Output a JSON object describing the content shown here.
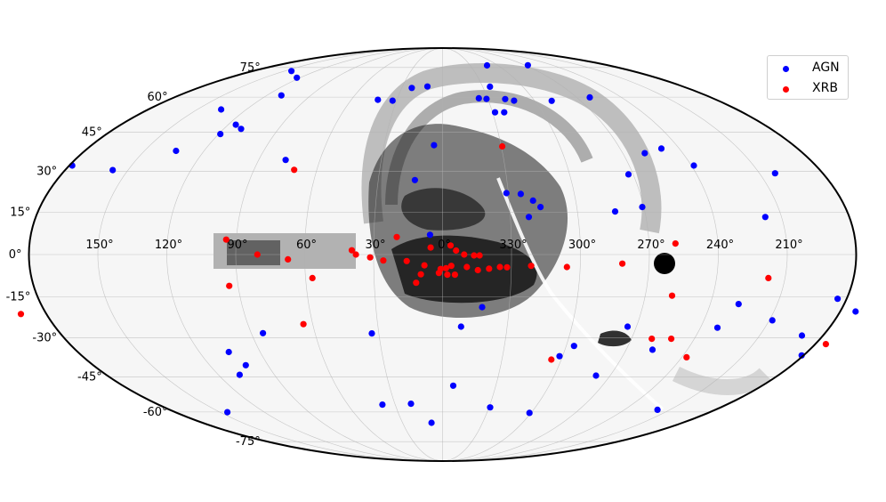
{
  "chart_data": {
    "type": "scatter",
    "projection": "mollweide",
    "grid": true,
    "legend_position": "top-right",
    "xlabel": "",
    "ylabel": "",
    "x_ticks": [
      "150°",
      "120°",
      "90°",
      "60°",
      "30°",
      "0°",
      "330°",
      "300°",
      "270°",
      "240°",
      "210°"
    ],
    "y_ticks": [
      "75°",
      "60°",
      "45°",
      "30°",
      "15°",
      "0°",
      "-15°",
      "-30°",
      "-45°",
      "-60°",
      "-75°"
    ],
    "series": [
      {
        "name": "AGN",
        "color": "#0000ff",
        "points": [
          [
            143.6,
            73.0
          ],
          [
            122.8,
            69.4
          ],
          [
            110.1,
            60.8
          ],
          [
            135.4,
            54.5
          ],
          [
            110.5,
            46.4
          ],
          [
            119.1,
            44.3
          ],
          [
            178.6,
            32.1
          ],
          [
            157.3,
            30.4
          ],
          [
            134.1,
            37.7
          ],
          [
            76.8,
            34.2
          ],
          [
            115.7,
            48.1
          ],
          [
            42.5,
            58.8
          ],
          [
            32.6,
            58.4
          ],
          [
            4.4,
            39.9
          ],
          [
            11.3,
            65.0
          ],
          [
            22.7,
            64.3
          ],
          [
            -35.4,
            64.9
          ],
          [
            -24.2,
            59.5
          ],
          [
            -29.1,
            59.2
          ],
          [
            -41.4,
            59.1
          ],
          [
            -37.0,
            53.3
          ],
          [
            -31.5,
            53.3
          ],
          [
            -93.0,
            76.3
          ],
          [
            -48.2,
            76.2
          ],
          [
            -71.1,
            58.3
          ],
          [
            -98.8,
            59.9
          ],
          [
            -46.7,
            58.4
          ],
          [
            -101.0,
            36.8
          ],
          [
            -111.0,
            38.6
          ],
          [
            -87.8,
            28.8
          ],
          [
            -121.2,
            32.1
          ],
          [
            -157.4,
            29.2
          ],
          [
            12.9,
            26.7
          ],
          [
            -29.1,
            21.9
          ],
          [
            -35.6,
            21.6
          ],
          [
            -40.8,
            19.2
          ],
          [
            -43.8,
            16.9
          ],
          [
            -76.8,
            15.3
          ],
          [
            -142.8,
            13.3
          ],
          [
            -38.2,
            13.3
          ],
          [
            5.5,
            7.0
          ],
          [
            -17.8,
            -18.7
          ],
          [
            84.5,
            -28.2
          ],
          [
            -8.6,
            -25.8
          ],
          [
            -30.8,
            -57.9
          ],
          [
            -151.4,
            -23.5
          ],
          [
            -170.0,
            -29.1
          ],
          [
            -132.7,
            -17.6
          ],
          [
            -127.9,
            -26.2
          ],
          [
            -58.9,
            -60.4
          ],
          [
            -63.8,
            -33.0
          ],
          [
            -82.4,
            -44.5
          ],
          [
            -85.9,
            -25.8
          ],
          [
            -102.9,
            -34.4
          ],
          [
            -187.0,
            -20.3
          ],
          [
            -179.1,
            -36.6
          ],
          [
            -141.8,
            -59.0
          ],
          [
            105.5,
            -35.3
          ],
          [
            108.6,
            -44.2
          ],
          [
            145.0,
            -60.1
          ],
          [
            -176.0,
            -15.7
          ],
          [
            8.3,
            -65.1
          ],
          [
            19.9,
            -56.3
          ],
          [
            33.3,
            -28.3
          ],
          [
            101.4,
            -40.4
          ],
          [
            38.1,
            -56.7
          ],
          [
            -6.0,
            -48.6
          ],
          [
            -89.3,
            16.9
          ],
          [
            -58.5,
            -36.9
          ]
        ]
      },
      {
        "name": "XRB",
        "color": "#ff0000",
        "points": [
          [
            -30.5,
            39.4
          ],
          [
            70.8,
            30.5
          ],
          [
            20.0,
            6.2
          ],
          [
            -3.5,
            3.2
          ],
          [
            5.2,
            2.5
          ],
          [
            -5.9,
            1.4
          ],
          [
            -9.4,
            0.0
          ],
          [
            -13.7,
            -0.3
          ],
          [
            -16.1,
            -0.3
          ],
          [
            31.5,
            -1.0
          ],
          [
            39.5,
            1.5
          ],
          [
            -101.5,
            3.9
          ],
          [
            94.4,
            5.3
          ],
          [
            80.6,
            0.0
          ],
          [
            67.3,
            -1.7
          ],
          [
            25.8,
            -2.1
          ],
          [
            37.7,
            0.0
          ],
          [
            15.6,
            -2.3
          ],
          [
            7.9,
            -3.8
          ],
          [
            -3.8,
            -4.0
          ],
          [
            -10.6,
            -4.4
          ],
          [
            -20.3,
            -5.0
          ],
          [
            -25.0,
            -4.4
          ],
          [
            -28.1,
            -4.5
          ],
          [
            -38.6,
            -4.0
          ],
          [
            -54.2,
            -4.4
          ],
          [
            -78.3,
            -3.2
          ],
          [
            -1.5,
            -4.8
          ],
          [
            0.8,
            -5.1
          ],
          [
            -2.1,
            -7.1
          ],
          [
            -5.4,
            -7.1
          ],
          [
            -15.4,
            -5.5
          ],
          [
            11.6,
            -10.0
          ],
          [
            1.6,
            -6.5
          ],
          [
            9.5,
            -7.0
          ],
          [
            57.0,
            -8.3
          ],
          [
            93.9,
            -11.1
          ],
          [
            -199.5,
            -6.4
          ],
          [
            -101.9,
            -14.6
          ],
          [
            -109.0,
            -30.3
          ],
          [
            -99.7,
            -30.3
          ],
          [
            -185.1,
            -32.3
          ],
          [
            191.6,
            -21.2
          ],
          [
            64.3,
            -24.9
          ],
          [
            -55.0,
            -38.2
          ],
          [
            -122.4,
            -37.3
          ],
          [
            -142.7,
            -8.3
          ]
        ]
      }
    ]
  }
}
